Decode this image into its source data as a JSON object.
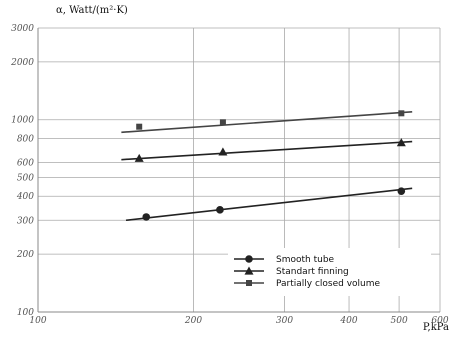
{
  "chart_data": {
    "type": "line",
    "ylabel": "α, Watt/(m²·K)",
    "xlabel": "P,kPa",
    "x_scale": "log",
    "y_scale": "log",
    "xlim": [
      100,
      600
    ],
    "ylim": [
      100,
      3000
    ],
    "x_ticks": [
      {
        "value": 100,
        "label": "100"
      },
      {
        "value": 200,
        "label": "200"
      },
      {
        "value": 300,
        "label": "300"
      },
      {
        "value": 400,
        "label": "400"
      },
      {
        "value": 500,
        "label": "500"
      },
      {
        "value": 600,
        "label": "600"
      }
    ],
    "y_ticks": [
      {
        "value": 100,
        "label": "100"
      },
      {
        "value": 200,
        "label": "200"
      },
      {
        "value": 300,
        "label": "300"
      },
      {
        "value": 400,
        "label": "400"
      },
      {
        "value": 500,
        "label": "500"
      },
      {
        "value": 600,
        "label": "600"
      },
      {
        "value": 800,
        "label": "800"
      },
      {
        "value": 1000,
        "label": "1000"
      },
      {
        "value": 2000,
        "label": "2000"
      },
      {
        "value": 3000,
        "label": "3000"
      }
    ],
    "grid": true,
    "legend_position": "bottom-right",
    "series": [
      {
        "name": "Smooth tube",
        "marker": "circle",
        "color": "#222222",
        "line": {
          "x": [
            148,
            530
          ],
          "y": [
            300,
            440
          ]
        },
        "points": [
          {
            "x": 162,
            "y": 312
          },
          {
            "x": 225,
            "y": 340
          },
          {
            "x": 505,
            "y": 425
          }
        ]
      },
      {
        "name": "Standart finning",
        "marker": "triangle",
        "color": "#222222",
        "line": {
          "x": [
            145,
            530
          ],
          "y": [
            620,
            770
          ]
        },
        "points": [
          {
            "x": 157,
            "y": 630
          },
          {
            "x": 228,
            "y": 680
          },
          {
            "x": 505,
            "y": 760
          }
        ]
      },
      {
        "name": "Partially closed volume",
        "marker": "square",
        "color": "#444444",
        "line": {
          "x": [
            145,
            530
          ],
          "y": [
            860,
            1100
          ]
        },
        "points": [
          {
            "x": 157,
            "y": 920
          },
          {
            "x": 228,
            "y": 970
          },
          {
            "x": 505,
            "y": 1080
          }
        ]
      }
    ]
  }
}
